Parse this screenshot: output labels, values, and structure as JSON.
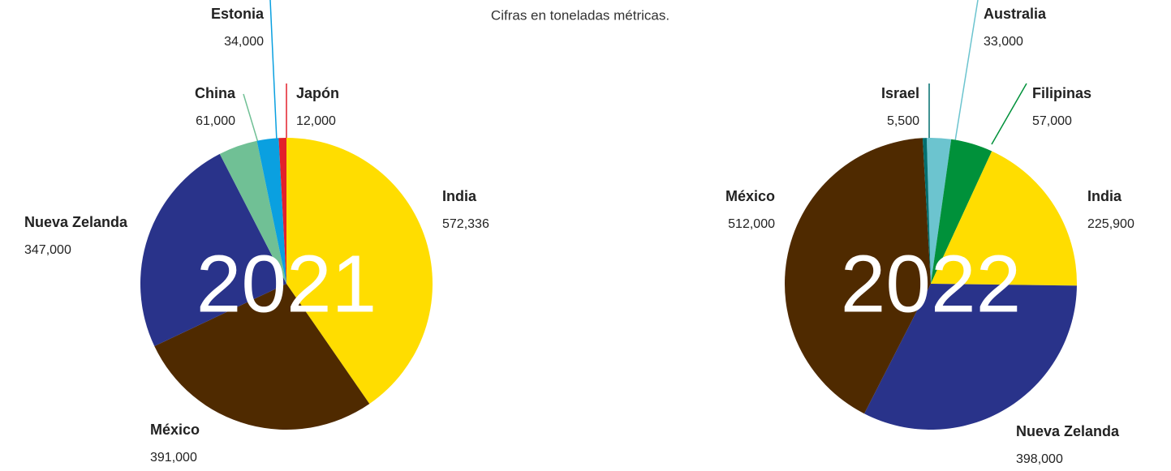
{
  "chart_data": [
    {
      "type": "pie",
      "title": "2021",
      "subtitle": "Cifras en toneladas métricas.",
      "categories": [
        "India",
        "México",
        "Nueva Zelanda",
        "China",
        "Estonia",
        "Japón"
      ],
      "values": [
        572336,
        391000,
        347000,
        61000,
        34000,
        12000
      ],
      "value_labels": [
        "572,336",
        "391,000",
        "347,000",
        "61,000",
        "34,000",
        "12,000"
      ],
      "colors": [
        "#ffdd00",
        "#4f2a00",
        "#29338a",
        "#70c095",
        "#0aa0e0",
        "#e3202a"
      ]
    },
    {
      "type": "pie",
      "title": "2022",
      "categories": [
        "Australia",
        "Filipinas",
        "India",
        "Nueva Zelanda",
        "México",
        "Israel"
      ],
      "values": [
        33000,
        57000,
        225900,
        398000,
        512000,
        5500
      ],
      "value_labels": [
        "33,000",
        "57,000",
        "225,900",
        "398,000",
        "512,000",
        "5,500"
      ],
      "colors": [
        "#6cc4cf",
        "#00913a",
        "#ffdd00",
        "#29338a",
        "#4f2a00",
        "#006e6e"
      ]
    }
  ]
}
